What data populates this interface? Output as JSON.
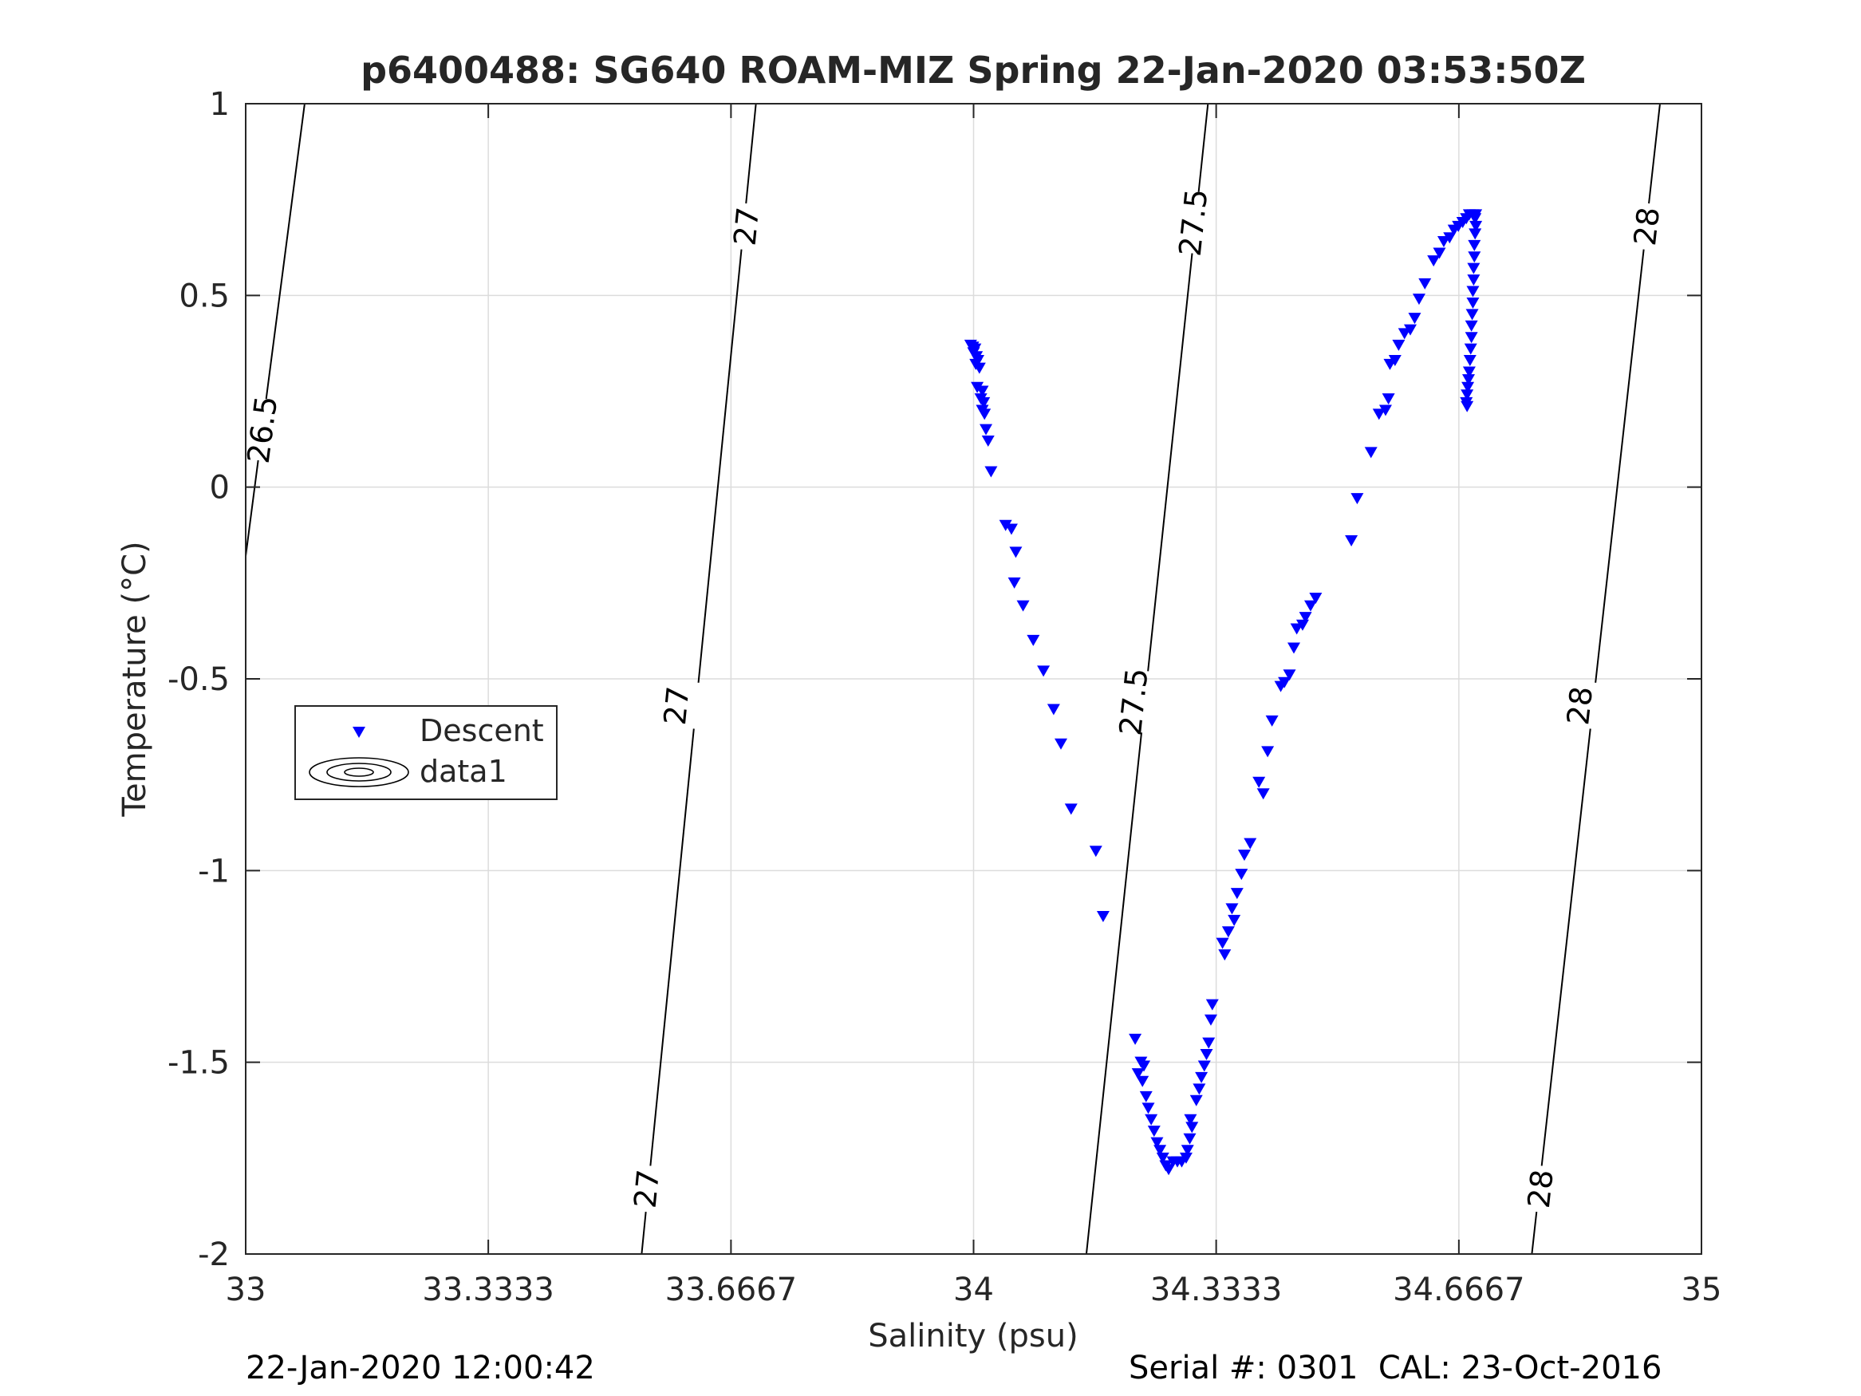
{
  "chart_data": {
    "type": "scatter",
    "title": "p6400488: SG640 ROAM-MIZ Spring 22-Jan-2020 03:53:50Z",
    "xlabel": "Salinity (psu)",
    "ylabel": "Temperature (°C)",
    "xlim": [
      33,
      35
    ],
    "ylim": [
      -2,
      1
    ],
    "x_ticks": [
      33,
      33.3333,
      33.6667,
      34,
      34.3333,
      34.6667,
      35
    ],
    "x_tick_labels": [
      "33",
      "33.3333",
      "33.6667",
      "34",
      "34.3333",
      "34.6667",
      "35"
    ],
    "y_ticks": [
      1,
      0.5,
      0,
      -0.5,
      -1,
      -1.5,
      -2
    ],
    "y_tick_labels": [
      "1",
      "0.5",
      "0",
      "-0.5",
      "-1",
      "-1.5",
      "-2"
    ],
    "grid": true,
    "legend": {
      "placement": "left-center",
      "entries": [
        "Descent",
        "data1"
      ]
    },
    "marker_color": "#0000ff",
    "contour_color": "#000000",
    "series": [
      {
        "name": "Descent",
        "marker": "triangle-down",
        "color": "#0000ff",
        "points": [
          [
            33.996,
            0.37
          ],
          [
            33.999,
            0.365
          ],
          [
            34.002,
            0.36
          ],
          [
            34.0,
            0.35
          ],
          [
            34.004,
            0.34
          ],
          [
            34.006,
            0.33
          ],
          [
            34.003,
            0.32
          ],
          [
            34.008,
            0.31
          ],
          [
            34.005,
            0.26
          ],
          [
            34.012,
            0.25
          ],
          [
            34.01,
            0.23
          ],
          [
            34.014,
            0.22
          ],
          [
            34.012,
            0.2
          ],
          [
            34.015,
            0.19
          ],
          [
            34.017,
            0.15
          ],
          [
            34.02,
            0.12
          ],
          [
            34.024,
            0.04
          ],
          [
            34.044,
            -0.1
          ],
          [
            34.052,
            -0.11
          ],
          [
            34.058,
            -0.17
          ],
          [
            34.056,
            -0.25
          ],
          [
            34.068,
            -0.31
          ],
          [
            34.082,
            -0.4
          ],
          [
            34.096,
            -0.48
          ],
          [
            34.11,
            -0.58
          ],
          [
            34.12,
            -0.67
          ],
          [
            34.134,
            -0.84
          ],
          [
            34.168,
            -0.95
          ],
          [
            34.178,
            -1.12
          ],
          [
            34.222,
            -1.44
          ],
          [
            34.23,
            -1.5
          ],
          [
            34.234,
            -1.51
          ],
          [
            34.226,
            -1.53
          ],
          [
            34.232,
            -1.55
          ],
          [
            34.237,
            -1.59
          ],
          [
            34.24,
            -1.62
          ],
          [
            34.244,
            -1.65
          ],
          [
            34.248,
            -1.68
          ],
          [
            34.252,
            -1.71
          ],
          [
            34.256,
            -1.73
          ],
          [
            34.26,
            -1.75
          ],
          [
            34.264,
            -1.77
          ],
          [
            34.268,
            -1.78
          ],
          [
            34.274,
            -1.76
          ],
          [
            34.28,
            -1.76
          ],
          [
            34.286,
            -1.76
          ],
          [
            34.292,
            -1.75
          ],
          [
            34.294,
            -1.73
          ],
          [
            34.297,
            -1.7
          ],
          [
            34.3,
            -1.67
          ],
          [
            34.298,
            -1.65
          ],
          [
            34.306,
            -1.6
          ],
          [
            34.31,
            -1.57
          ],
          [
            34.313,
            -1.54
          ],
          [
            34.317,
            -1.51
          ],
          [
            34.32,
            -1.48
          ],
          [
            34.323,
            -1.45
          ],
          [
            34.326,
            -1.39
          ],
          [
            34.328,
            -1.35
          ],
          [
            34.342,
            -1.19
          ],
          [
            34.345,
            -1.22
          ],
          [
            34.35,
            -1.16
          ],
          [
            34.355,
            -1.1
          ],
          [
            34.358,
            -1.13
          ],
          [
            34.362,
            -1.06
          ],
          [
            34.368,
            -1.01
          ],
          [
            34.372,
            -0.96
          ],
          [
            34.38,
            -0.93
          ],
          [
            34.392,
            -0.77
          ],
          [
            34.398,
            -0.8
          ],
          [
            34.404,
            -0.69
          ],
          [
            34.41,
            -0.61
          ],
          [
            34.422,
            -0.52
          ],
          [
            34.427,
            -0.51
          ],
          [
            34.434,
            -0.49
          ],
          [
            34.44,
            -0.42
          ],
          [
            34.444,
            -0.37
          ],
          [
            34.452,
            -0.36
          ],
          [
            34.456,
            -0.34
          ],
          [
            34.463,
            -0.31
          ],
          [
            34.47,
            -0.29
          ],
          [
            34.519,
            -0.14
          ],
          [
            34.527,
            -0.03
          ],
          [
            34.546,
            0.09
          ],
          [
            34.557,
            0.19
          ],
          [
            34.566,
            0.2
          ],
          [
            34.57,
            0.23
          ],
          [
            34.572,
            0.32
          ],
          [
            34.579,
            0.33
          ],
          [
            34.584,
            0.37
          ],
          [
            34.592,
            0.4
          ],
          [
            34.6,
            0.41
          ],
          [
            34.606,
            0.44
          ],
          [
            34.612,
            0.49
          ],
          [
            34.62,
            0.53
          ],
          [
            34.632,
            0.59
          ],
          [
            34.64,
            0.61
          ],
          [
            34.646,
            0.64
          ],
          [
            34.654,
            0.65
          ],
          [
            34.66,
            0.67
          ],
          [
            34.666,
            0.68
          ],
          [
            34.672,
            0.69
          ],
          [
            34.677,
            0.7
          ],
          [
            34.681,
            0.71
          ],
          [
            34.686,
            0.71
          ],
          [
            34.69,
            0.71
          ],
          [
            34.689,
            0.7
          ],
          [
            34.69,
            0.68
          ],
          [
            34.689,
            0.66
          ],
          [
            34.688,
            0.63
          ],
          [
            34.688,
            0.6
          ],
          [
            34.687,
            0.57
          ],
          [
            34.687,
            0.54
          ],
          [
            34.686,
            0.51
          ],
          [
            34.686,
            0.48
          ],
          [
            34.685,
            0.45
          ],
          [
            34.684,
            0.42
          ],
          [
            34.684,
            0.39
          ],
          [
            34.683,
            0.36
          ],
          [
            34.682,
            0.33
          ],
          [
            34.681,
            0.3
          ],
          [
            34.68,
            0.28
          ],
          [
            34.679,
            0.26
          ],
          [
            34.678,
            0.24
          ],
          [
            34.677,
            0.22
          ],
          [
            34.678,
            0.21
          ]
        ]
      },
      {
        "name": "data1",
        "type": "contour",
        "levels": [
          26.5,
          27,
          27.5,
          28
        ],
        "lines": [
          {
            "level": 26.5,
            "label": "26.5",
            "points": [
              [
                33.0,
                -0.18
              ],
              [
                33.081,
                1.0
              ]
            ]
          },
          {
            "level": 27,
            "label": "27",
            "points": [
              [
                33.544,
                -2.0
              ],
              [
                33.701,
                1.0
              ]
            ]
          },
          {
            "level": 27.5,
            "label": "27.5",
            "points": [
              [
                34.155,
                -2.0
              ],
              [
                34.322,
                1.0
              ]
            ]
          },
          {
            "level": 28,
            "label": "28",
            "points": [
              [
                34.767,
                -2.0
              ],
              [
                34.943,
                1.0
              ]
            ]
          }
        ],
        "labels": [
          {
            "text": "26.5",
            "s": 33.023,
            "t": 0.15
          },
          {
            "text": "27",
            "s": 33.688,
            "t": 0.68
          },
          {
            "text": "27",
            "s": 33.592,
            "t": -0.57
          },
          {
            "text": "27",
            "s": 33.551,
            "t": -1.83
          },
          {
            "text": "27.5",
            "s": 34.302,
            "t": 0.69
          },
          {
            "text": "27.5",
            "s": 34.22,
            "t": -0.56
          },
          {
            "text": "28",
            "s": 34.925,
            "t": 0.68
          },
          {
            "text": "28",
            "s": 34.833,
            "t": -0.57
          },
          {
            "text": "28",
            "s": 34.779,
            "t": -1.83
          }
        ]
      }
    ]
  },
  "footer": {
    "timestamp": "22-Jan-2020 12:00:42",
    "serial": "Serial #: 0301  CAL: 23-Oct-2016"
  }
}
